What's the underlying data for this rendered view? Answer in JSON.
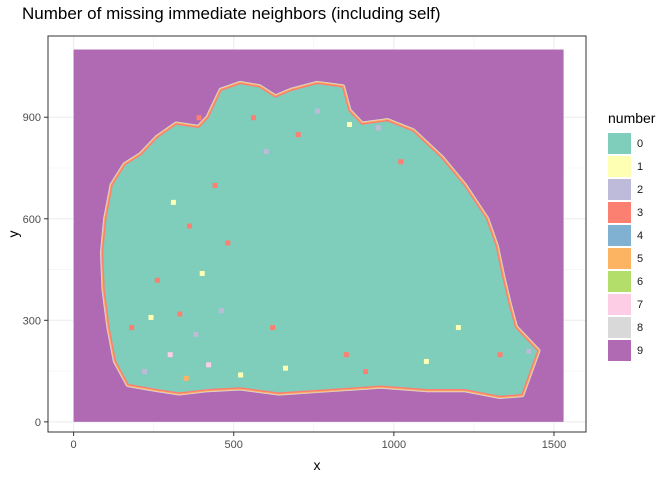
{
  "chart_data": {
    "type": "heatmap",
    "title": "Number of missing immediate neighbors (including self)",
    "xlabel": "x",
    "ylabel": "y",
    "xlim": [
      -80,
      1600
    ],
    "ylim": [
      -30,
      1140
    ],
    "x_ticks": [
      0,
      500,
      1000,
      1500
    ],
    "y_ticks": [
      0,
      300,
      600,
      900
    ],
    "grid": true,
    "legend_title": "number",
    "legend_position": "right",
    "categories": [
      "0",
      "1",
      "2",
      "3",
      "4",
      "5",
      "6",
      "7",
      "8",
      "9"
    ],
    "colors": {
      "0": "#7fcdbb",
      "1": "#ffffb3",
      "2": "#bebada",
      "3": "#fb8072",
      "4": "#80b1d3",
      "5": "#fdb462",
      "6": "#b3de69",
      "7": "#fccde5",
      "8": "#d9d9d9",
      "9": "#b06ab3"
    },
    "background_region": {
      "category": "9",
      "x": [
        0,
        1530
      ],
      "y": [
        0,
        1100
      ]
    },
    "tissue_outline": [
      [
        170,
        110
      ],
      [
        260,
        95
      ],
      [
        330,
        85
      ],
      [
        420,
        95
      ],
      [
        520,
        100
      ],
      [
        640,
        85
      ],
      [
        800,
        95
      ],
      [
        960,
        105
      ],
      [
        1100,
        95
      ],
      [
        1220,
        95
      ],
      [
        1330,
        75
      ],
      [
        1400,
        80
      ],
      [
        1450,
        210
      ],
      [
        1380,
        280
      ],
      [
        1360,
        350
      ],
      [
        1340,
        430
      ],
      [
        1320,
        520
      ],
      [
        1290,
        600
      ],
      [
        1220,
        700
      ],
      [
        1150,
        780
      ],
      [
        1060,
        860
      ],
      [
        980,
        890
      ],
      [
        900,
        880
      ],
      [
        860,
        920
      ],
      [
        840,
        990
      ],
      [
        760,
        1000
      ],
      [
        680,
        980
      ],
      [
        630,
        960
      ],
      [
        580,
        990
      ],
      [
        520,
        1000
      ],
      [
        460,
        980
      ],
      [
        420,
        900
      ],
      [
        390,
        870
      ],
      [
        320,
        880
      ],
      [
        260,
        840
      ],
      [
        210,
        790
      ],
      [
        160,
        760
      ],
      [
        120,
        700
      ],
      [
        100,
        600
      ],
      [
        90,
        500
      ],
      [
        95,
        390
      ],
      [
        110,
        280
      ],
      [
        130,
        180
      ]
    ],
    "speckles": [
      {
        "x": 180,
        "y": 280,
        "category": "3"
      },
      {
        "x": 220,
        "y": 150,
        "category": "2"
      },
      {
        "x": 240,
        "y": 310,
        "category": "1"
      },
      {
        "x": 260,
        "y": 420,
        "category": "3"
      },
      {
        "x": 300,
        "y": 200,
        "category": "7"
      },
      {
        "x": 310,
        "y": 650,
        "category": "1"
      },
      {
        "x": 330,
        "y": 320,
        "category": "3"
      },
      {
        "x": 350,
        "y": 130,
        "category": "5"
      },
      {
        "x": 360,
        "y": 580,
        "category": "3"
      },
      {
        "x": 380,
        "y": 260,
        "category": "2"
      },
      {
        "x": 390,
        "y": 900,
        "category": "3"
      },
      {
        "x": 400,
        "y": 440,
        "category": "1"
      },
      {
        "x": 420,
        "y": 170,
        "category": "7"
      },
      {
        "x": 440,
        "y": 700,
        "category": "3"
      },
      {
        "x": 460,
        "y": 330,
        "category": "2"
      },
      {
        "x": 480,
        "y": 530,
        "category": "3"
      },
      {
        "x": 520,
        "y": 140,
        "category": "1"
      },
      {
        "x": 560,
        "y": 900,
        "category": "3"
      },
      {
        "x": 600,
        "y": 800,
        "category": "2"
      },
      {
        "x": 620,
        "y": 280,
        "category": "3"
      },
      {
        "x": 660,
        "y": 160,
        "category": "1"
      },
      {
        "x": 700,
        "y": 850,
        "category": "3"
      },
      {
        "x": 760,
        "y": 920,
        "category": "2"
      },
      {
        "x": 850,
        "y": 200,
        "category": "3"
      },
      {
        "x": 860,
        "y": 880,
        "category": "1"
      },
      {
        "x": 910,
        "y": 150,
        "category": "3"
      },
      {
        "x": 950,
        "y": 870,
        "category": "2"
      },
      {
        "x": 1020,
        "y": 770,
        "category": "3"
      },
      {
        "x": 1100,
        "y": 180,
        "category": "1"
      },
      {
        "x": 1200,
        "y": 280,
        "category": "1"
      },
      {
        "x": 1330,
        "y": 200,
        "category": "3"
      },
      {
        "x": 1420,
        "y": 210,
        "category": "2"
      }
    ]
  }
}
